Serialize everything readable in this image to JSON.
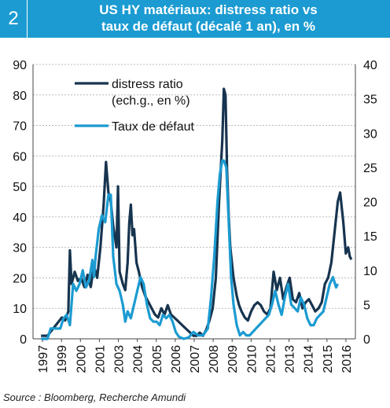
{
  "header": {
    "number": "2",
    "title_line1": "US HY matériaux: distress ratio vs",
    "title_line2": "taux de défaut (décalé 1 an), en %"
  },
  "source": "Source : Bloomberg, Recherche Amundi",
  "colors": {
    "accent": "#1b9bd1",
    "distress": "#17344f",
    "default": "#1b9bd1",
    "grid": "#b9b9b9"
  },
  "chart_data": {
    "type": "line",
    "title": "US HY matériaux: distress ratio vs taux de défaut (décalé 1 an), en %",
    "x_tick_labels": [
      "1997",
      "1999",
      "2000",
      "2001",
      "2003",
      "2004",
      "2005",
      "2006",
      "2007",
      "2008",
      "2009",
      "2010",
      "2012",
      "2013",
      "2014",
      "2015",
      "2016"
    ],
    "xlim": [
      1997,
      2017.1
    ],
    "y_left": {
      "ticks": [
        0,
        10,
        20,
        30,
        40,
        50,
        60,
        70,
        80,
        90
      ],
      "lim": [
        0,
        90
      ]
    },
    "y_right": {
      "ticks": [
        0,
        5,
        10,
        15,
        20,
        25,
        30,
        35,
        40
      ],
      "lim": [
        0,
        40
      ]
    },
    "grid": "horizontal",
    "legend_position": "top-left",
    "series": [
      {
        "name": "distress ratio\n(ech.g., en %)",
        "axis": "left",
        "points": [
          [
            1997.5,
            1
          ],
          [
            1997.9,
            1
          ],
          [
            1998.2,
            3
          ],
          [
            1998.5,
            5
          ],
          [
            1998.8,
            7
          ],
          [
            1999.0,
            6
          ],
          [
            1999.2,
            9
          ],
          [
            1999.3,
            29
          ],
          [
            1999.4,
            18
          ],
          [
            1999.6,
            22
          ],
          [
            1999.8,
            19
          ],
          [
            2000.0,
            20
          ],
          [
            2000.2,
            17
          ],
          [
            2000.4,
            21
          ],
          [
            2000.6,
            17
          ],
          [
            2000.8,
            24
          ],
          [
            2001.0,
            20
          ],
          [
            2001.2,
            30
          ],
          [
            2001.4,
            44
          ],
          [
            2001.55,
            58
          ],
          [
            2001.7,
            48
          ],
          [
            2001.85,
            45
          ],
          [
            2002.0,
            37
          ],
          [
            2002.2,
            30
          ],
          [
            2002.3,
            50
          ],
          [
            2002.4,
            22
          ],
          [
            2002.5,
            20
          ],
          [
            2002.6,
            18
          ],
          [
            2002.75,
            16
          ],
          [
            2002.9,
            25
          ],
          [
            2003.0,
            38
          ],
          [
            2003.1,
            44
          ],
          [
            2003.2,
            34
          ],
          [
            2003.3,
            36
          ],
          [
            2003.45,
            25
          ],
          [
            2003.6,
            22
          ],
          [
            2003.8,
            17
          ],
          [
            2004.0,
            14
          ],
          [
            2004.2,
            12
          ],
          [
            2004.4,
            10
          ],
          [
            2004.6,
            8
          ],
          [
            2004.8,
            7
          ],
          [
            2005.0,
            10
          ],
          [
            2005.2,
            8
          ],
          [
            2005.4,
            11
          ],
          [
            2005.6,
            8
          ],
          [
            2005.8,
            7
          ],
          [
            2006.0,
            6
          ],
          [
            2006.2,
            5
          ],
          [
            2006.4,
            4
          ],
          [
            2006.6,
            3
          ],
          [
            2006.8,
            2
          ],
          [
            2007.0,
            1
          ],
          [
            2007.2,
            1
          ],
          [
            2007.4,
            2
          ],
          [
            2007.6,
            1
          ],
          [
            2007.8,
            3
          ],
          [
            2008.0,
            6
          ],
          [
            2008.2,
            10
          ],
          [
            2008.4,
            20
          ],
          [
            2008.6,
            45
          ],
          [
            2008.8,
            65
          ],
          [
            2008.9,
            82
          ],
          [
            2009.0,
            80
          ],
          [
            2009.1,
            55
          ],
          [
            2009.2,
            40
          ],
          [
            2009.3,
            30
          ],
          [
            2009.5,
            20
          ],
          [
            2009.7,
            14
          ],
          [
            2009.85,
            11
          ],
          [
            2010.0,
            9
          ],
          [
            2010.2,
            7
          ],
          [
            2010.4,
            6
          ],
          [
            2010.6,
            9
          ],
          [
            2010.8,
            11
          ],
          [
            2011.0,
            12
          ],
          [
            2011.2,
            11
          ],
          [
            2011.4,
            9
          ],
          [
            2011.6,
            8
          ],
          [
            2011.8,
            10
          ],
          [
            2012.0,
            22
          ],
          [
            2012.2,
            16
          ],
          [
            2012.4,
            20
          ],
          [
            2012.6,
            13
          ],
          [
            2012.8,
            17
          ],
          [
            2013.0,
            20
          ],
          [
            2013.2,
            13
          ],
          [
            2013.4,
            12
          ],
          [
            2013.6,
            15
          ],
          [
            2013.8,
            10
          ],
          [
            2014.0,
            12
          ],
          [
            2014.2,
            13
          ],
          [
            2014.4,
            11
          ],
          [
            2014.6,
            9
          ],
          [
            2014.8,
            10
          ],
          [
            2015.0,
            12
          ],
          [
            2015.2,
            18
          ],
          [
            2015.4,
            20
          ],
          [
            2015.6,
            25
          ],
          [
            2015.8,
            35
          ],
          [
            2016.0,
            45
          ],
          [
            2016.15,
            48
          ],
          [
            2016.35,
            38
          ],
          [
            2016.5,
            28
          ],
          [
            2016.65,
            30
          ],
          [
            2016.75,
            27
          ],
          [
            2016.85,
            26
          ]
        ]
      },
      {
        "name": "Taux de défaut",
        "axis": "right",
        "points": [
          [
            1997.5,
            0
          ],
          [
            1997.9,
            0
          ],
          [
            1998.1,
            1.5
          ],
          [
            1998.4,
            1.5
          ],
          [
            1998.7,
            1.5
          ],
          [
            1998.9,
            3
          ],
          [
            1999.1,
            3.5
          ],
          [
            1999.3,
            2
          ],
          [
            1999.5,
            8
          ],
          [
            1999.7,
            7
          ],
          [
            1999.9,
            8
          ],
          [
            2000.1,
            10
          ],
          [
            2000.3,
            7.5
          ],
          [
            2000.5,
            8.5
          ],
          [
            2000.7,
            11.5
          ],
          [
            2000.8,
            9
          ],
          [
            2000.9,
            12
          ],
          [
            2001.1,
            16
          ],
          [
            2001.3,
            18
          ],
          [
            2001.5,
            17
          ],
          [
            2001.7,
            21
          ],
          [
            2001.85,
            21
          ],
          [
            2002.0,
            12
          ],
          [
            2002.2,
            8
          ],
          [
            2002.4,
            7
          ],
          [
            2002.6,
            5
          ],
          [
            2002.75,
            2.5
          ],
          [
            2002.9,
            4
          ],
          [
            2003.1,
            3
          ],
          [
            2003.3,
            5
          ],
          [
            2003.5,
            7
          ],
          [
            2003.7,
            9
          ],
          [
            2003.9,
            8
          ],
          [
            2004.1,
            5
          ],
          [
            2004.3,
            3
          ],
          [
            2004.5,
            2.5
          ],
          [
            2004.7,
            2.5
          ],
          [
            2004.9,
            2
          ],
          [
            2005.1,
            3.5
          ],
          [
            2005.3,
            3
          ],
          [
            2005.5,
            3.5
          ],
          [
            2005.7,
            2.5
          ],
          [
            2005.9,
            1
          ],
          [
            2006.1,
            0.3
          ],
          [
            2006.4,
            0
          ],
          [
            2006.7,
            0.2
          ],
          [
            2007.0,
            1
          ],
          [
            2007.3,
            0.5
          ],
          [
            2007.6,
            0.5
          ],
          [
            2007.9,
            1.5
          ],
          [
            2008.1,
            6
          ],
          [
            2008.3,
            12
          ],
          [
            2008.5,
            20
          ],
          [
            2008.65,
            24
          ],
          [
            2008.8,
            26
          ],
          [
            2008.9,
            26
          ],
          [
            2009.05,
            25
          ],
          [
            2009.2,
            17
          ],
          [
            2009.35,
            9
          ],
          [
            2009.5,
            5
          ],
          [
            2009.7,
            2
          ],
          [
            2009.9,
            0.5
          ],
          [
            2010.1,
            1
          ],
          [
            2010.3,
            0.5
          ],
          [
            2010.5,
            0.5
          ],
          [
            2010.7,
            1
          ],
          [
            2010.9,
            1.5
          ],
          [
            2011.1,
            2
          ],
          [
            2011.3,
            2.5
          ],
          [
            2011.5,
            3
          ],
          [
            2011.7,
            3.5
          ],
          [
            2011.9,
            5
          ],
          [
            2012.1,
            7
          ],
          [
            2012.3,
            5
          ],
          [
            2012.5,
            3.5
          ],
          [
            2012.7,
            6
          ],
          [
            2012.9,
            8
          ],
          [
            2013.1,
            5
          ],
          [
            2013.3,
            4.5
          ],
          [
            2013.5,
            4
          ],
          [
            2013.7,
            6
          ],
          [
            2013.9,
            5
          ],
          [
            2014.1,
            3
          ],
          [
            2014.3,
            2
          ],
          [
            2014.5,
            2
          ],
          [
            2014.7,
            3
          ],
          [
            2014.9,
            3.5
          ],
          [
            2015.1,
            4
          ],
          [
            2015.3,
            6
          ],
          [
            2015.5,
            8
          ],
          [
            2015.7,
            9
          ],
          [
            2015.9,
            7.5
          ],
          [
            2016.0,
            8
          ]
        ]
      }
    ]
  }
}
